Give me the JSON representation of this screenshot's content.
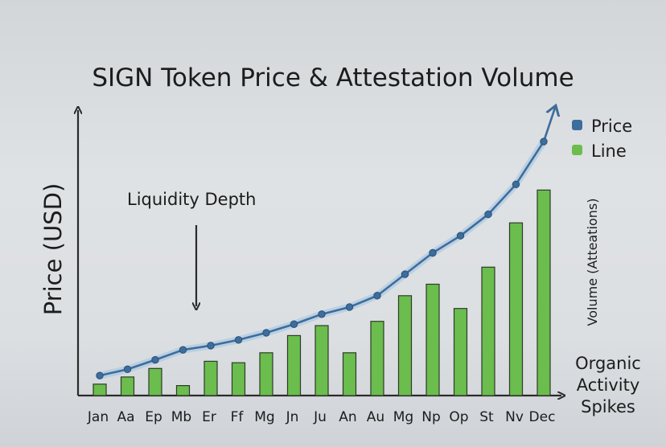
{
  "chart_data": {
    "type": "bar",
    "title": "SIGN Token Price & Attestation Volume",
    "ylabel": "Price (USD)",
    "y2label": "Volume (Atteations)",
    "xlabel": "Organic Activity Spikes",
    "annotation": "Liquidity Depth",
    "categories": [
      "Jan",
      "Aa",
      "Ep",
      "Mb",
      "Er",
      "Ff",
      "Mg",
      "Jn",
      "Ju",
      "An",
      "Au",
      "Mg",
      "Np",
      "Op",
      "St",
      "Nv",
      "Dec"
    ],
    "series": [
      {
        "name": "Price",
        "type": "line",
        "color": "#3d6d9c",
        "values": [
          0.7,
          0.92,
          1.25,
          1.6,
          1.75,
          1.95,
          2.2,
          2.5,
          2.85,
          3.1,
          3.5,
          4.25,
          5.0,
          5.6,
          6.35,
          7.4,
          8.9
        ]
      },
      {
        "name": "Line",
        "type": "bar",
        "color": "#6bbd4d",
        "values": [
          0.4,
          0.65,
          0.95,
          0.35,
          1.2,
          1.15,
          1.5,
          2.1,
          2.45,
          1.5,
          2.6,
          3.5,
          3.9,
          3.05,
          4.5,
          6.05,
          7.2
        ]
      }
    ],
    "ylim": [
      0,
      10
    ],
    "grid": false,
    "legend": "top-right"
  }
}
